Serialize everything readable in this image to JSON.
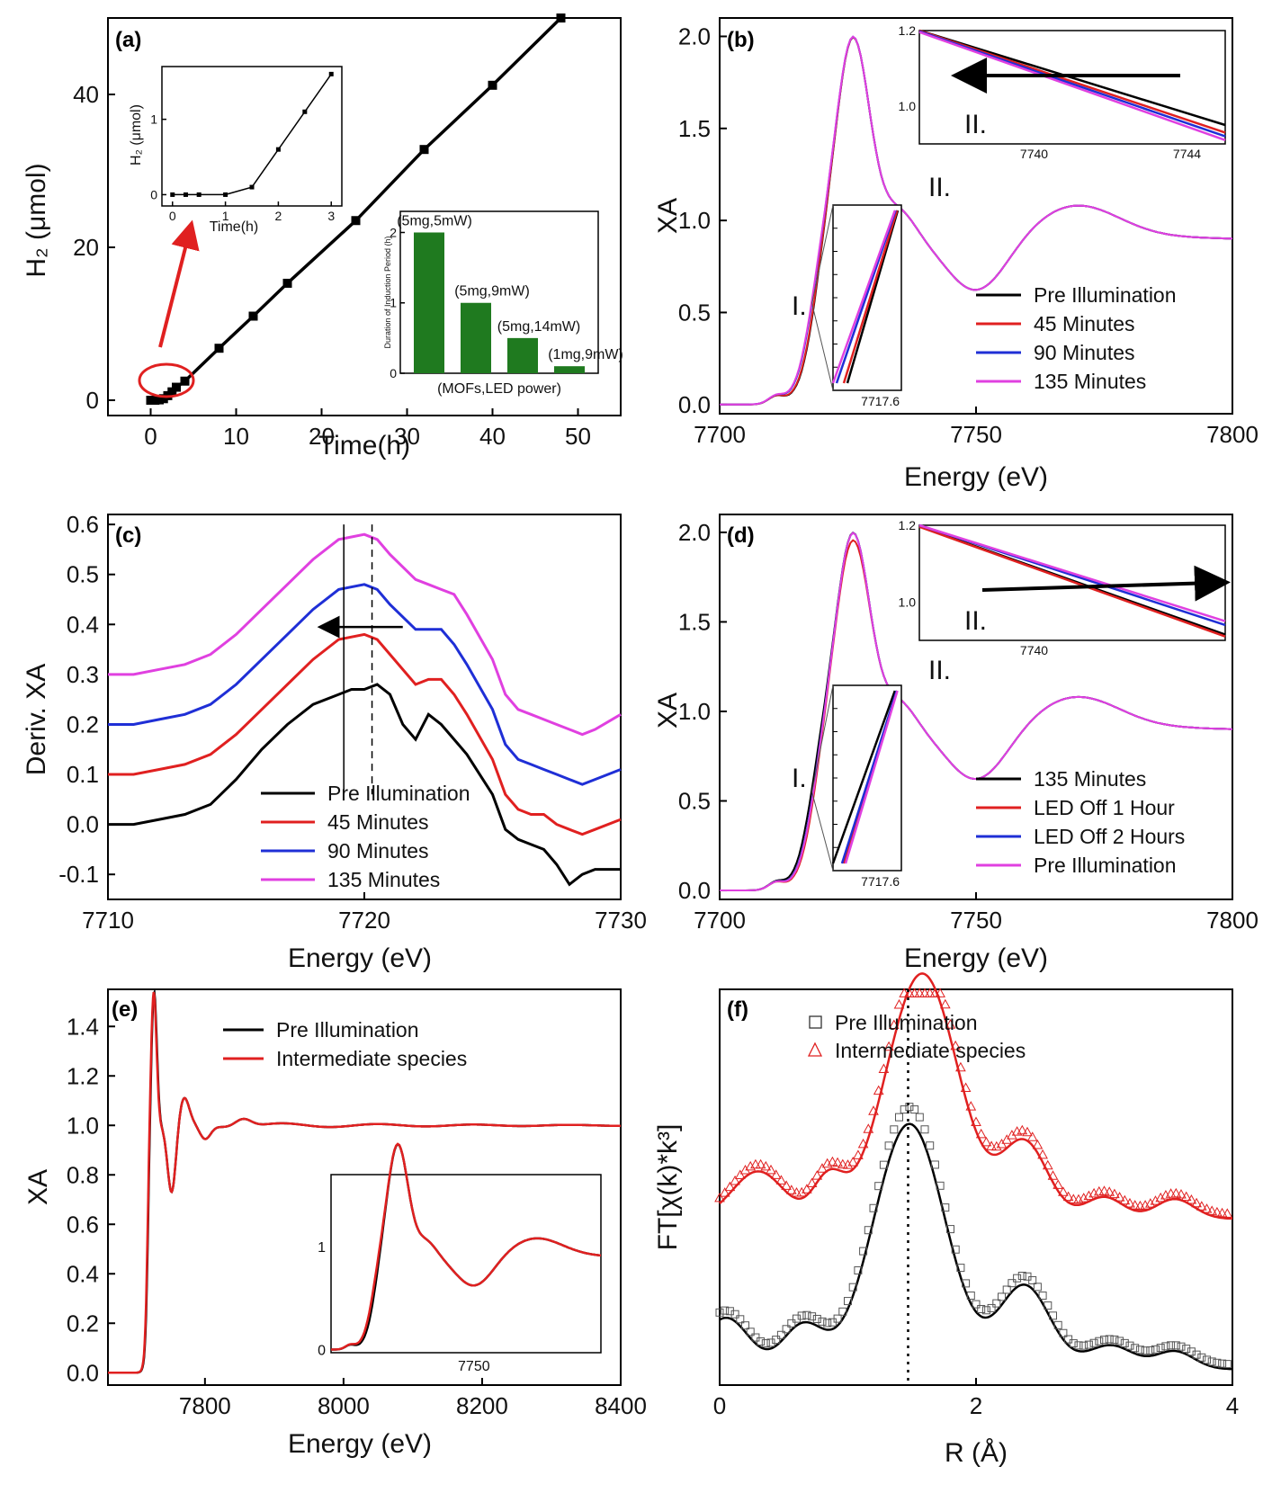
{
  "chart_data": [
    {
      "id": "a",
      "type": "line",
      "panel_label": "(a)",
      "xlabel": "Time(h)",
      "ylabel": "H₂ (μmol)",
      "xlim": [
        -5,
        55
      ],
      "ylim": [
        -2,
        50
      ],
      "xticks": [
        0,
        10,
        20,
        30,
        40,
        50
      ],
      "yticks": [
        0,
        20,
        40
      ],
      "series": [
        {
          "color": "#000000",
          "marker": "square",
          "x": [
            0,
            0.5,
            1,
            1.5,
            2,
            2.5,
            3,
            4,
            8,
            12,
            16,
            24,
            32,
            40,
            48
          ],
          "y": [
            0,
            0,
            0.05,
            0.2,
            0.6,
            1.1,
            1.7,
            2.5,
            6.8,
            11,
            15.3,
            23.5,
            32.8,
            41.2,
            50
          ]
        }
      ],
      "insets": [
        {
          "type": "line",
          "xlabel": "Time(h)",
          "ylabel": "H₂ (μmol)",
          "xticks": [
            0,
            1,
            2,
            3
          ],
          "yticks": [
            0,
            1
          ],
          "x": [
            0,
            0.25,
            0.5,
            1,
            1.5,
            2,
            2.5,
            3
          ],
          "y": [
            0,
            0,
            0,
            0,
            0.1,
            0.6,
            1.1,
            1.6
          ]
        },
        {
          "type": "bar",
          "xlabel": "(MOFs,LED power)",
          "ylabel": "Duration of Induction Period (h)",
          "yticks": [
            0,
            1,
            2
          ],
          "categories": [
            "(5mg,5mW)",
            "(5mg,9mW)",
            "(5mg,14mW)",
            "(1mg,9mW)"
          ],
          "values": [
            2.0,
            1.0,
            0.5,
            0.1
          ],
          "color": "#1f7a1f"
        }
      ]
    },
    {
      "id": "b",
      "type": "line",
      "panel_label": "(b)",
      "xlabel": "Energy (eV)",
      "ylabel": "XA",
      "xlim": [
        7700,
        7800
      ],
      "ylim": [
        -0.05,
        2.1
      ],
      "xticks": [
        7700,
        7750,
        7800
      ],
      "yticks": [
        0.0,
        0.5,
        1.0,
        1.5,
        2.0
      ],
      "annotations": [
        "I.",
        "II."
      ],
      "series": [
        {
          "name": "Pre Illumination",
          "color": "#000000"
        },
        {
          "name": "45 Minutes",
          "color": "#e02020"
        },
        {
          "name": "90 Minutes",
          "color": "#1f2fd6"
        },
        {
          "name": "135 Minutes",
          "color": "#e040e0"
        }
      ],
      "insets": [
        {
          "region": "II.",
          "xticks": [
            7740,
            7744
          ],
          "yticks": [
            1.0,
            1.2
          ],
          "arrow": "left"
        },
        {
          "region": "I.",
          "xticks": [
            7717.6
          ]
        }
      ]
    },
    {
      "id": "c",
      "type": "line",
      "panel_label": "(c)",
      "xlabel": "Energy (eV)",
      "ylabel": "Deriv. XA",
      "xlim": [
        7710,
        7730
      ],
      "ylim": [
        -0.15,
        0.62
      ],
      "xticks": [
        7710,
        7720,
        7730
      ],
      "yticks": [
        -0.1,
        0.0,
        0.1,
        0.2,
        0.3,
        0.4,
        0.5,
        0.6
      ],
      "ytick_labels": [
        "-0.1",
        "0.0",
        "0.1",
        "0.2",
        "0.3",
        "0.4",
        "0.5",
        "0.6"
      ],
      "vlines": [
        7719.2,
        7720.3
      ],
      "series": [
        {
          "name": "Pre Illumination",
          "color": "#000000",
          "x": [
            7710,
            7711,
            7712,
            7713,
            7714,
            7715,
            7716,
            7717,
            7718,
            7719,
            7719.5,
            7720,
            7720.5,
            7721,
            7721.5,
            7722,
            7722.5,
            7723,
            7723.5,
            7724,
            7725,
            7725.5,
            7726,
            7726.5,
            7727,
            7727.5,
            7728,
            7728.5,
            7729,
            7730
          ],
          "y": [
            0.0,
            0.0,
            0.01,
            0.02,
            0.04,
            0.09,
            0.15,
            0.2,
            0.24,
            0.26,
            0.27,
            0.27,
            0.28,
            0.26,
            0.2,
            0.17,
            0.22,
            0.2,
            0.17,
            0.14,
            0.06,
            -0.01,
            -0.03,
            -0.04,
            -0.05,
            -0.08,
            -0.12,
            -0.1,
            -0.09,
            -0.09
          ]
        },
        {
          "name": "45 Minutes",
          "color": "#e02020",
          "x": [
            7710,
            7711,
            7712,
            7713,
            7714,
            7715,
            7716,
            7717,
            7718,
            7719,
            7720,
            7720.5,
            7721,
            7722,
            7722.5,
            7723,
            7723.5,
            7724,
            7725,
            7725.5,
            7726,
            7726.5,
            7727,
            7727.5,
            7728,
            7728.5,
            7729,
            7730
          ],
          "y": [
            0.1,
            0.1,
            0.11,
            0.12,
            0.14,
            0.18,
            0.23,
            0.28,
            0.33,
            0.37,
            0.38,
            0.37,
            0.34,
            0.28,
            0.29,
            0.29,
            0.26,
            0.22,
            0.13,
            0.06,
            0.03,
            0.02,
            0.02,
            0.0,
            -0.01,
            -0.02,
            -0.01,
            0.01
          ]
        },
        {
          "name": "90 Minutes",
          "color": "#1f2fd6",
          "x": [
            7710,
            7711,
            7712,
            7713,
            7714,
            7715,
            7716,
            7717,
            7718,
            7719,
            7720,
            7720.5,
            7721,
            7722,
            7722.5,
            7723,
            7723.5,
            7724,
            7725,
            7725.5,
            7726,
            7726.5,
            7727,
            7727.5,
            7728,
            7728.5,
            7729,
            7730
          ],
          "y": [
            0.2,
            0.2,
            0.21,
            0.22,
            0.24,
            0.28,
            0.33,
            0.38,
            0.43,
            0.47,
            0.48,
            0.47,
            0.44,
            0.39,
            0.39,
            0.39,
            0.36,
            0.32,
            0.23,
            0.16,
            0.13,
            0.12,
            0.11,
            0.1,
            0.09,
            0.08,
            0.09,
            0.11
          ]
        },
        {
          "name": "135 Minutes",
          "color": "#e040e0",
          "x": [
            7710,
            7711,
            7712,
            7713,
            7714,
            7715,
            7716,
            7717,
            7718,
            7719,
            7720,
            7720.5,
            7721,
            7722,
            7722.5,
            7723,
            7723.5,
            7724,
            7725,
            7725.5,
            7726,
            7726.5,
            7727,
            7727.5,
            7728,
            7728.5,
            7729,
            7730
          ],
          "y": [
            0.3,
            0.3,
            0.31,
            0.32,
            0.34,
            0.38,
            0.43,
            0.48,
            0.53,
            0.57,
            0.58,
            0.57,
            0.54,
            0.49,
            0.48,
            0.47,
            0.46,
            0.42,
            0.33,
            0.26,
            0.23,
            0.22,
            0.21,
            0.2,
            0.19,
            0.18,
            0.19,
            0.22
          ]
        }
      ]
    },
    {
      "id": "d",
      "type": "line",
      "panel_label": "(d)",
      "xlabel": "Energy (eV)",
      "ylabel": "XA",
      "xlim": [
        7700,
        7800
      ],
      "ylim": [
        -0.05,
        2.1
      ],
      "xticks": [
        7700,
        7750,
        7800
      ],
      "yticks": [
        0.0,
        0.5,
        1.0,
        1.5,
        2.0
      ],
      "annotations": [
        "I.",
        "II."
      ],
      "series": [
        {
          "name": "135 Minutes",
          "color": "#000000"
        },
        {
          "name": "LED Off 1 Hour",
          "color": "#e02020"
        },
        {
          "name": "LED Off 2 Hours",
          "color": "#1f2fd6"
        },
        {
          "name": "Pre Illumination",
          "color": "#e040e0"
        }
      ],
      "insets": [
        {
          "region": "II.",
          "xticks": [
            7740
          ],
          "yticks": [
            1.0,
            1.2
          ],
          "arrow": "right"
        },
        {
          "region": "I.",
          "xticks": [
            7717.6
          ]
        }
      ]
    },
    {
      "id": "e",
      "type": "line",
      "panel_label": "(e)",
      "xlabel": "Energy (eV)",
      "ylabel": "XA",
      "xlim": [
        7660,
        8400
      ],
      "ylim": [
        -0.05,
        1.55
      ],
      "xticks": [
        7800,
        8000,
        8200,
        8400
      ],
      "yticks": [
        0.0,
        0.2,
        0.4,
        0.6,
        0.8,
        1.0,
        1.2,
        1.4
      ],
      "series": [
        {
          "name": "Pre Illumination",
          "color": "#000000"
        },
        {
          "name": "Intermediate species",
          "color": "#e02020"
        }
      ],
      "insets": [
        {
          "xticks": [
            7750
          ],
          "yticks": [
            0,
            1
          ]
        }
      ]
    },
    {
      "id": "f",
      "type": "line",
      "panel_label": "(f)",
      "xlabel": "R (Å)",
      "ylabel": "FT[χ(k)*k³]",
      "xlim": [
        0,
        4
      ],
      "xticks": [
        0,
        2,
        4
      ],
      "vlines": [
        1.47
      ],
      "series": [
        {
          "name": "Pre Illumination",
          "color": "#000000",
          "marker": "open-square"
        },
        {
          "name": "Intermediate species",
          "color": "#e02020",
          "marker": "open-triangle"
        }
      ]
    }
  ]
}
